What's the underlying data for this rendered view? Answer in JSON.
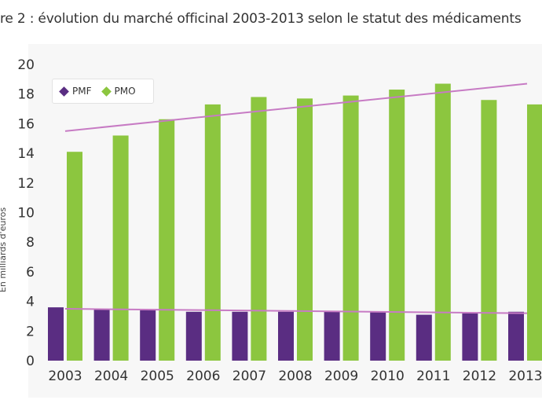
{
  "title": "re 2 : évolution du marché officinal 2003-2013 selon le statut des médicaments",
  "chart_data": {
    "type": "bar",
    "categories": [
      "2003",
      "2004",
      "2005",
      "2006",
      "2007",
      "2008",
      "2009",
      "2010",
      "2011",
      "2012",
      "2013"
    ],
    "series": [
      {
        "name": "PMF",
        "color": "#5a2d82",
        "values": [
          3.6,
          3.5,
          3.4,
          3.3,
          3.3,
          3.3,
          3.3,
          3.3,
          3.1,
          3.2,
          3.3
        ]
      },
      {
        "name": "PMO",
        "color": "#8cc63f",
        "values": [
          14.1,
          15.2,
          16.3,
          17.3,
          17.8,
          17.7,
          17.9,
          18.3,
          18.7,
          17.6,
          17.3
        ]
      }
    ],
    "trendlines": [
      {
        "series": "PMF",
        "from": [
          2003,
          3.5
        ],
        "to": [
          2013,
          3.2
        ],
        "color": "#c77bc4"
      },
      {
        "series": "PMO",
        "from": [
          2003,
          15.5
        ],
        "to": [
          2013,
          18.7
        ],
        "color": "#c77bc4"
      }
    ],
    "ylabel": "En milliards d'euros",
    "ylim": [
      0,
      20
    ],
    "yticks": [
      "0",
      "2",
      "4",
      "6",
      "8",
      "10",
      "12",
      "14",
      "16",
      "18",
      "20"
    ],
    "legend": "top-left",
    "grid": false
  }
}
